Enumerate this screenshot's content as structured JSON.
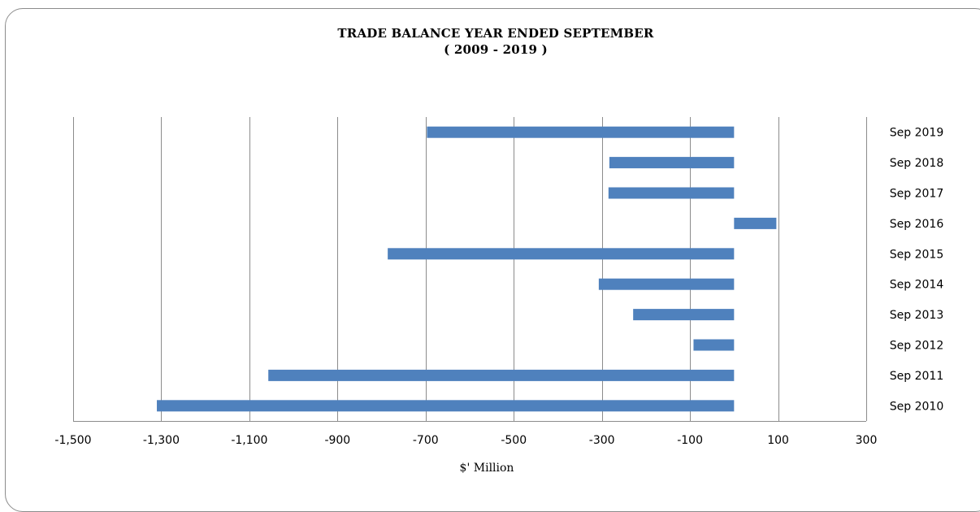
{
  "chart_data": {
    "type": "bar",
    "orientation": "horizontal",
    "title": "TRADE BALANCE YEAR ENDED  SEPTEMBER",
    "subtitle": "( 2009 - 2019 )",
    "xlabel": "$' Million",
    "ylabel": "",
    "xlim": [
      -1500,
      300
    ],
    "xticks": [
      -1500,
      -1300,
      -1100,
      -900,
      -700,
      -500,
      -300,
      -100,
      100,
      300
    ],
    "xtick_labels": [
      "-1,500",
      "-1,300",
      "-1,100",
      "-900",
      "-700",
      "-500",
      "-300",
      "-100",
      "100",
      "300"
    ],
    "categories": [
      "Sep 2019",
      "Sep 2018",
      "Sep 2017",
      "Sep 2016",
      "Sep 2015",
      "Sep 2014",
      "Sep 2013",
      "Sep 2012",
      "Sep 2011",
      "Sep 2010"
    ],
    "values": [
      -697,
      -283,
      -285,
      96,
      -786,
      -307,
      -229,
      -92,
      -1057,
      -1310
    ],
    "grid": "vertical",
    "legend": "none",
    "bar_color": "#4f81bd"
  }
}
